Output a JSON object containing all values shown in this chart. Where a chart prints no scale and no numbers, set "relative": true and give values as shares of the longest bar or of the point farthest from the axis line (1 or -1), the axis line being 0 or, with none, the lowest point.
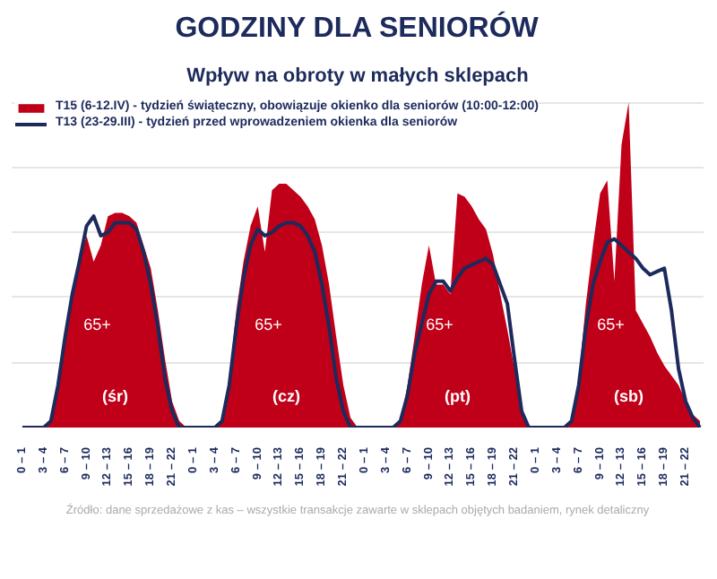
{
  "chart_data": {
    "type": "area",
    "title": "GODZINY DLA SENIORÓW",
    "subtitle": "Wpływ na obroty w małych sklepach",
    "relative": true,
    "grid": "y",
    "legend": "top left",
    "categories": [
      "0 – 1",
      null,
      null,
      "3 – 4",
      null,
      null,
      "6 – 7",
      null,
      null,
      "9 – 10",
      null,
      null,
      "12 – 13",
      null,
      null,
      "15 – 16",
      null,
      null,
      "18 – 19",
      null,
      null,
      "21 – 22",
      null,
      null,
      "0 – 1",
      null,
      null,
      "3 – 4",
      null,
      null,
      "6 – 7",
      null,
      null,
      "9 – 10",
      null,
      null,
      "12 – 13",
      null,
      null,
      "15 – 16",
      null,
      null,
      "18 – 19",
      null,
      null,
      "21 – 22",
      null,
      null,
      "0 – 1",
      null,
      null,
      "3 – 4",
      null,
      null,
      "6 – 7",
      null,
      null,
      "9 – 10",
      null,
      null,
      "12 – 13",
      null,
      null,
      "15 – 16",
      null,
      null,
      "18 – 19",
      null,
      null,
      "21 – 22",
      null,
      null,
      "0 – 1",
      null,
      null,
      "3 – 4",
      null,
      null,
      "6 – 7",
      null,
      null,
      "9 – 10",
      null,
      null,
      "12 – 13",
      null,
      null,
      "15 – 16",
      null,
      null,
      "18 – 19",
      null,
      null,
      "21 – 22",
      null,
      null
    ],
    "series": [
      {
        "name": "T15 (6-12.IV) - tydzień świąteczny, obowiązuje okienko dla seniorów (10:00-12:00)",
        "color": "#c00018",
        "values": [
          0,
          0,
          0,
          0,
          0.02,
          0.13,
          0.28,
          0.41,
          0.51,
          0.59,
          0.51,
          0.56,
          0.65,
          0.66,
          0.66,
          0.65,
          0.63,
          0.56,
          0.49,
          0.36,
          0.21,
          0.08,
          0.02,
          0,
          0,
          0,
          0,
          0,
          0.02,
          0.15,
          0.36,
          0.51,
          0.62,
          0.68,
          0.54,
          0.73,
          0.75,
          0.75,
          0.73,
          0.71,
          0.68,
          0.64,
          0.56,
          0.44,
          0.28,
          0.13,
          0.03,
          0,
          0,
          0,
          0,
          0,
          0,
          0.02,
          0.13,
          0.28,
          0.44,
          0.56,
          0.44,
          0.44,
          0.41,
          0.72,
          0.71,
          0.68,
          0.64,
          0.61,
          0.53,
          0.41,
          0.3,
          0.18,
          0.05,
          0,
          0,
          0,
          0,
          0,
          0,
          0.02,
          0.15,
          0.38,
          0.56,
          0.72,
          0.76,
          0.45,
          0.87,
          1.0,
          0.36,
          0.32,
          0.28,
          0.23,
          0.19,
          0.16,
          0.13,
          0.08,
          0.04,
          0.02
        ]
      },
      {
        "name": "T13 (23-29.III) - tydzień przed wprowadzeniem okienka dla seniorów",
        "type": "line",
        "color": "#1c2a5c",
        "values": [
          0,
          0,
          0,
          0,
          0.02,
          0.13,
          0.28,
          0.41,
          0.51,
          0.62,
          0.65,
          0.59,
          0.6,
          0.63,
          0.63,
          0.63,
          0.61,
          0.54,
          0.44,
          0.31,
          0.15,
          0.05,
          0,
          0,
          0,
          0,
          0,
          0,
          0.02,
          0.13,
          0.31,
          0.46,
          0.56,
          0.61,
          0.59,
          0.6,
          0.62,
          0.63,
          0.63,
          0.62,
          0.59,
          0.54,
          0.44,
          0.31,
          0.15,
          0.05,
          0,
          0,
          0,
          0,
          0,
          0,
          0,
          0.02,
          0.1,
          0.23,
          0.32,
          0.41,
          0.45,
          0.45,
          0.42,
          0.46,
          0.49,
          0.5,
          0.51,
          0.52,
          0.5,
          0.44,
          0.38,
          0.21,
          0.05,
          0,
          0,
          0,
          0,
          0,
          0,
          0.02,
          0.13,
          0.31,
          0.44,
          0.51,
          0.57,
          0.58,
          0.56,
          0.54,
          0.52,
          0.49,
          0.47,
          0.48,
          0.49,
          0.36,
          0.18,
          0.08,
          0.03,
          0
        ]
      }
    ],
    "annotations": [
      "65+",
      "(śr)",
      "65+",
      "(cz)",
      "65+",
      "(pt)",
      "65+",
      "(sb)",
      "Źródło: dane sprzedażowe z kas – wszystkie transakcje zawarte w sklepach objętych badaniem, rynek detaliczny"
    ]
  }
}
